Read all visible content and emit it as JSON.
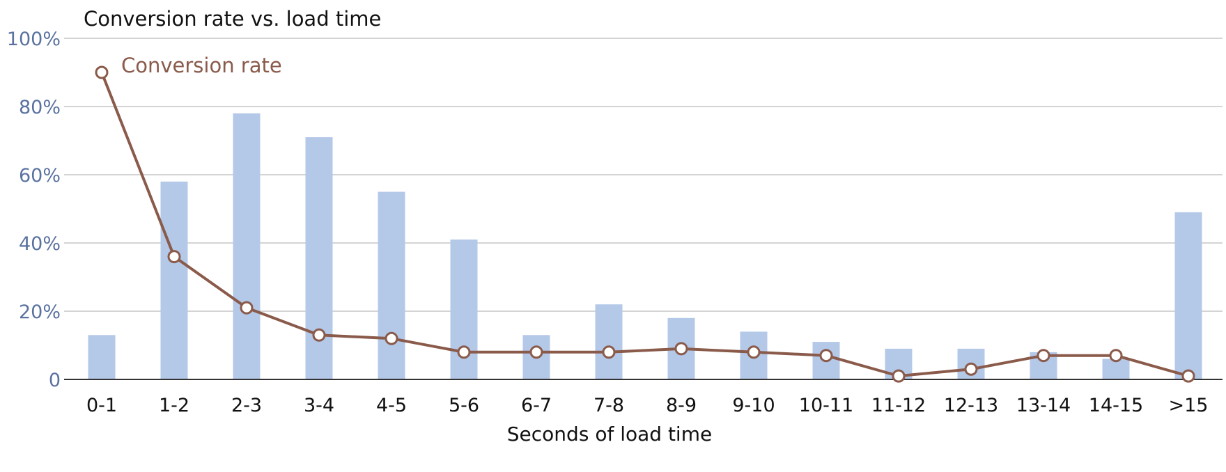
{
  "chart_data": {
    "type": "bar",
    "title": "Conversion rate vs. load time",
    "xlabel": "Seconds of load time",
    "ylabel": "",
    "ylim": [
      0,
      100
    ],
    "yticks": [
      "0",
      "20%",
      "40%",
      "60%",
      "80%",
      "100%"
    ],
    "categories": [
      "0-1",
      "1-2",
      "2-3",
      "3-4",
      "4-5",
      "5-6",
      "6-7",
      "7-8",
      "8-9",
      "9-10",
      "10-11",
      "11-12",
      "12-13",
      "13-14",
      "14-15",
      ">15"
    ],
    "series": [
      {
        "type": "bar",
        "values": [
          13,
          58,
          78,
          71,
          55,
          41,
          13,
          22,
          18,
          14,
          11,
          9,
          9,
          8,
          6,
          49
        ],
        "color": "#b4c8e8"
      },
      {
        "name": "Conversion rate",
        "type": "line",
        "values": [
          90,
          36,
          21,
          13,
          12,
          8,
          8,
          8,
          9,
          8,
          7,
          1,
          3,
          7,
          7,
          1
        ],
        "color": "#8a5a4a"
      }
    ],
    "grid": true
  }
}
